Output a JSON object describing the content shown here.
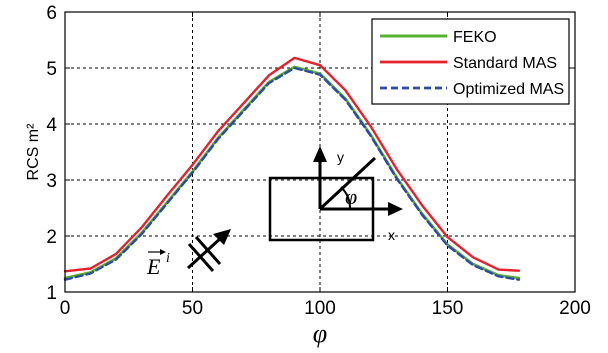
{
  "chart_data": {
    "type": "line",
    "xlabel": "φ",
    "ylabel": "RCS m²",
    "xlim": [
      0,
      200
    ],
    "ylim": [
      1,
      6
    ],
    "x_ticks": [
      "0",
      "50",
      "100",
      "150",
      "200"
    ],
    "y_ticks": [
      "1",
      "2",
      "3",
      "4",
      "5",
      "6"
    ],
    "grid": true,
    "legend_position": "top-right",
    "x": [
      0,
      10,
      20,
      30,
      40,
      50,
      60,
      70,
      80,
      90,
      100,
      110,
      120,
      130,
      140,
      150,
      160,
      170,
      178
    ],
    "series": [
      {
        "name": "FEKO",
        "color": "#5ab031",
        "values": [
          1.25,
          1.35,
          1.6,
          2.05,
          2.6,
          3.15,
          3.75,
          4.25,
          4.75,
          5.02,
          4.9,
          4.45,
          3.8,
          3.05,
          2.4,
          1.85,
          1.5,
          1.3,
          1.25
        ]
      },
      {
        "name": "Standard MAS",
        "color": "#e8202a",
        "values": [
          1.37,
          1.42,
          1.68,
          2.15,
          2.72,
          3.27,
          3.87,
          4.37,
          4.87,
          5.18,
          5.05,
          4.6,
          3.95,
          3.2,
          2.55,
          1.98,
          1.62,
          1.4,
          1.38
        ]
      },
      {
        "name": "Optimized MAS",
        "color": "#2b4ca3",
        "values": [
          1.22,
          1.33,
          1.58,
          2.03,
          2.58,
          3.13,
          3.73,
          4.23,
          4.73,
          5.0,
          4.88,
          4.43,
          3.78,
          3.03,
          2.38,
          1.83,
          1.48,
          1.28,
          1.22
        ]
      }
    ],
    "annotations": {
      "inset_axis_y": "y",
      "inset_axis_x": "x",
      "inset_angle": "φ",
      "incident_field": "E",
      "incident_field_sup": "i"
    }
  }
}
